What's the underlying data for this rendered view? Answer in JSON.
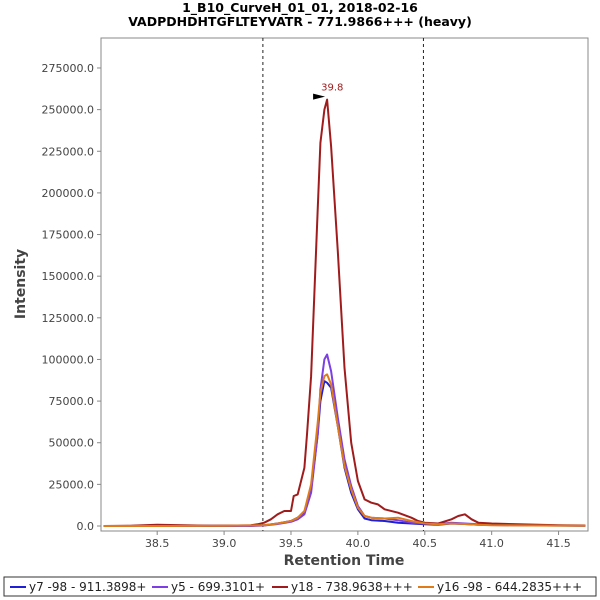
{
  "chart_data": {
    "type": "line",
    "title": "1_B10_CurveH_01_01, 2018-02-16",
    "subtitle": "VADPDHDHTGFLTEYVATR - 771.9866+++ (heavy)",
    "xlabel": "Retention Time",
    "ylabel": "Intensity",
    "xlim": [
      38.08,
      41.72
    ],
    "ylim": [
      -3000,
      293000
    ],
    "x_ticks": [
      "38.5",
      "39.0",
      "39.5",
      "40.0",
      "40.5",
      "41.0",
      "41.5"
    ],
    "y_ticks": [
      "0.0",
      "25000.0",
      "50000.0",
      "75000.0",
      "100000.0",
      "125000.0",
      "150000.0",
      "175000.0",
      "200000.0",
      "225000.0",
      "250000.0",
      "275000.0"
    ],
    "grid": false,
    "legend_position": "bottom",
    "boundary_lines": [
      39.29,
      40.49
    ],
    "annotation": {
      "label": "39.8",
      "x": 39.77,
      "y": 256000,
      "color": "#a01c1c"
    },
    "series": [
      {
        "name": "y7 -98 - 911.3898+",
        "color": "#1f1fd6",
        "x": [
          38.1,
          38.3,
          38.5,
          38.7,
          38.9,
          39.1,
          39.3,
          39.4,
          39.5,
          39.55,
          39.6,
          39.65,
          39.7,
          39.72,
          39.75,
          39.77,
          39.8,
          39.85,
          39.9,
          39.95,
          40.0,
          40.05,
          40.1,
          40.2,
          40.3,
          40.4,
          40.5,
          40.6,
          40.7,
          40.8,
          40.9,
          41.0,
          41.2,
          41.4,
          41.7
        ],
        "y": [
          0,
          0,
          300,
          0,
          200,
          0,
          500,
          1500,
          3000,
          5000,
          8000,
          22000,
          55000,
          75000,
          87000,
          86000,
          83000,
          60000,
          35000,
          20000,
          10000,
          4500,
          3500,
          3000,
          2000,
          1500,
          1000,
          800,
          1500,
          1200,
          800,
          600,
          400,
          300,
          200
        ]
      },
      {
        "name": "y5 - 699.3101+",
        "color": "#7b3fe4",
        "x": [
          38.1,
          38.5,
          38.9,
          39.2,
          39.3,
          39.4,
          39.5,
          39.55,
          39.6,
          39.65,
          39.7,
          39.72,
          39.75,
          39.77,
          39.8,
          39.85,
          39.9,
          39.95,
          40.0,
          40.05,
          40.1,
          40.2,
          40.3,
          40.4,
          40.5,
          40.6,
          40.7,
          40.8,
          40.9,
          41.0,
          41.2,
          41.4,
          41.7
        ],
        "y": [
          0,
          0,
          200,
          0,
          300,
          1200,
          2500,
          4000,
          7000,
          20000,
          55000,
          82000,
          100000,
          103000,
          93000,
          65000,
          40000,
          24000,
          12000,
          6000,
          5000,
          4500,
          3500,
          2000,
          1500,
          1200,
          2000,
          1500,
          1000,
          800,
          600,
          400,
          200
        ]
      },
      {
        "name": "y18 - 738.9638+++",
        "color": "#a01c1c",
        "x": [
          38.1,
          38.3,
          38.5,
          38.7,
          38.9,
          39.1,
          39.2,
          39.25,
          39.3,
          39.35,
          39.4,
          39.45,
          39.5,
          39.52,
          39.55,
          39.6,
          39.62,
          39.65,
          39.7,
          39.72,
          39.75,
          39.77,
          39.8,
          39.85,
          39.9,
          39.95,
          40.0,
          40.05,
          40.1,
          40.15,
          40.2,
          40.3,
          40.4,
          40.45,
          40.5,
          40.6,
          40.7,
          40.75,
          40.8,
          40.85,
          40.9,
          41.0,
          41.2,
          41.5,
          41.7
        ],
        "y": [
          0,
          200,
          800,
          400,
          200,
          300,
          500,
          1000,
          2000,
          4000,
          7000,
          9000,
          9000,
          18000,
          19000,
          35000,
          55000,
          90000,
          190000,
          230000,
          250000,
          256000,
          228000,
          165000,
          95000,
          50000,
          27000,
          16000,
          14000,
          13000,
          10000,
          8000,
          5000,
          3000,
          2000,
          1500,
          4000,
          6000,
          7000,
          4000,
          2000,
          1500,
          1000,
          500,
          300
        ]
      },
      {
        "name": "y16 -98 - 644.2835+++",
        "color": "#e07b1a",
        "x": [
          38.1,
          38.5,
          39.0,
          39.3,
          39.4,
          39.5,
          39.55,
          39.6,
          39.65,
          39.7,
          39.72,
          39.75,
          39.77,
          39.8,
          39.85,
          39.9,
          39.95,
          40.0,
          40.05,
          40.1,
          40.2,
          40.3,
          40.4,
          40.5,
          40.6,
          40.7,
          40.8,
          40.9,
          41.0,
          41.3,
          41.7
        ],
        "y": [
          0,
          0,
          200,
          500,
          1500,
          3000,
          5000,
          9000,
          25000,
          62000,
          80000,
          90000,
          91000,
          85000,
          60000,
          36000,
          22000,
          11000,
          6000,
          5000,
          4500,
          5000,
          3000,
          1500,
          1000,
          1500,
          1200,
          800,
          500,
          300,
          200
        ]
      }
    ]
  }
}
